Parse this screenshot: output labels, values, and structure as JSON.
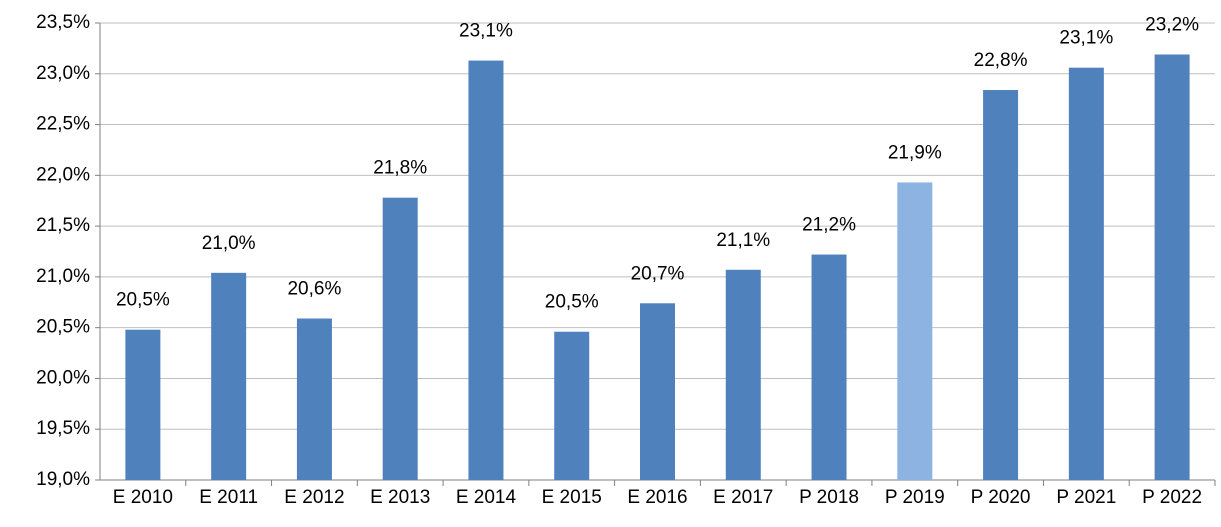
{
  "chart_data": {
    "type": "bar",
    "categories": [
      "E 2010",
      "E 2011",
      "E 2012",
      "E 2013",
      "E 2014",
      "E 2015",
      "E 2016",
      "E 2017",
      "P 2018",
      "P 2019",
      "P 2020",
      "P 2021",
      "P 2022"
    ],
    "values": [
      20.48,
      21.04,
      20.59,
      21.78,
      23.13,
      20.46,
      20.74,
      21.07,
      21.22,
      21.93,
      22.84,
      23.06,
      23.19
    ],
    "value_labels": [
      "20,5%",
      "21,0%",
      "20,6%",
      "21,8%",
      "23,1%",
      "20,5%",
      "20,7%",
      "21,1%",
      "21,2%",
      "21,9%",
      "22,8%",
      "23,1%",
      "23,2%"
    ],
    "colors": [
      "#4f81bd",
      "#4f81bd",
      "#4f81bd",
      "#4f81bd",
      "#4f81bd",
      "#4f81bd",
      "#4f81bd",
      "#4f81bd",
      "#4f81bd",
      "#8db3e2",
      "#4f81bd",
      "#4f81bd",
      "#4f81bd"
    ],
    "ylim": [
      19.0,
      23.5
    ],
    "yticks": [
      {
        "value": 19.0,
        "label": "19,0%"
      },
      {
        "value": 19.5,
        "label": "19,5%"
      },
      {
        "value": 20.0,
        "label": "20,0%"
      },
      {
        "value": 20.5,
        "label": "20,5%"
      },
      {
        "value": 21.0,
        "label": "21,0%"
      },
      {
        "value": 21.5,
        "label": "21,5%"
      },
      {
        "value": 22.0,
        "label": "22,0%"
      },
      {
        "value": 22.5,
        "label": "22,5%"
      },
      {
        "value": 23.0,
        "label": "23,0%"
      },
      {
        "value": 23.5,
        "label": "23,5%"
      }
    ],
    "grid": true
  }
}
